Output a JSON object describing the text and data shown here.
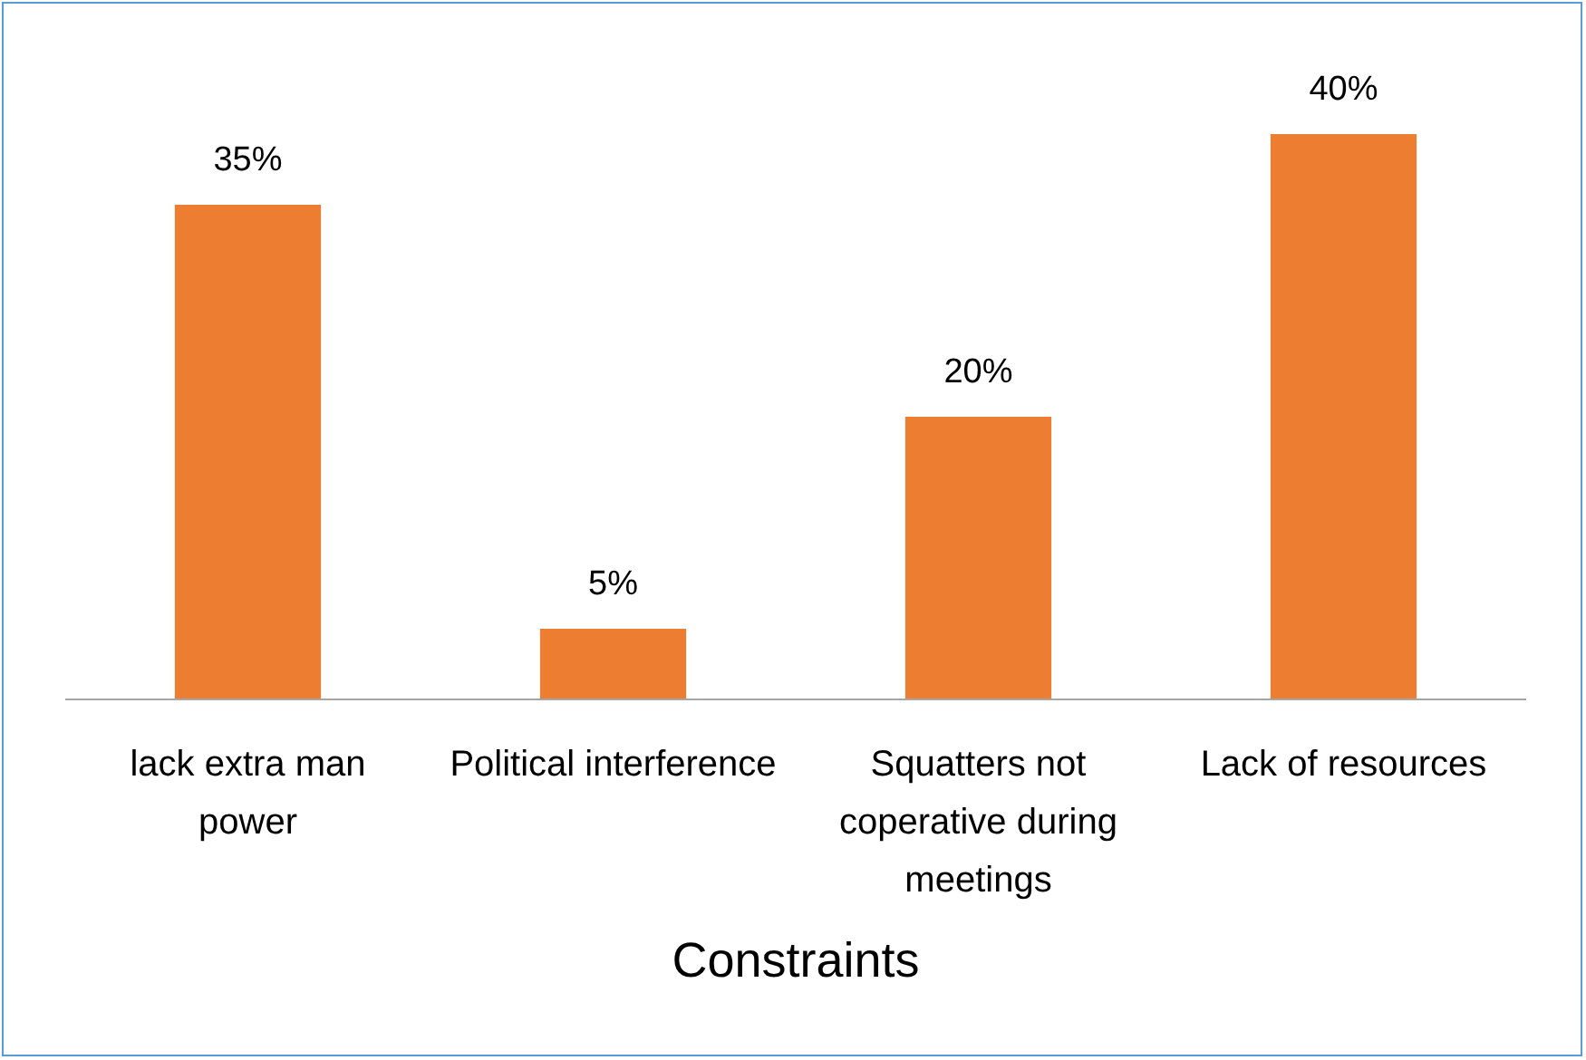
{
  "chart_data": {
    "type": "bar",
    "xlabel": "Constraints",
    "categories": [
      "lack extra man power",
      "Political interference",
      "Squatters not coperative during meetings",
      "Lack of resources"
    ],
    "values": [
      35,
      5,
      20,
      40
    ],
    "color": "#ed7d31",
    "value_labels": [
      "35%",
      "5%",
      "20%",
      "40%"
    ]
  }
}
